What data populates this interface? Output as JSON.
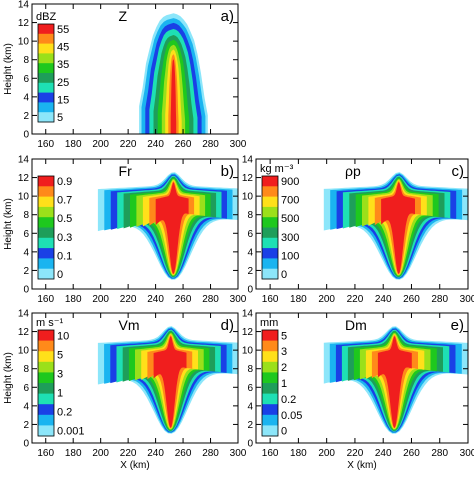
{
  "chart_data": [
    {
      "type": "heatmap",
      "panel_letter": "a)",
      "variable": "Z",
      "units": "dBZ",
      "ylabel": "Height (km)",
      "xlabel": "",
      "xlim": [
        150,
        300
      ],
      "ylim": [
        0,
        14
      ],
      "xticks": [
        160,
        180,
        200,
        220,
        240,
        260,
        280,
        300
      ],
      "yticks": [
        0,
        2,
        4,
        6,
        8,
        10,
        12,
        14
      ],
      "colorbar_ticks": [
        "55",
        "45",
        "35",
        "25",
        "15",
        "5"
      ],
      "colorbar_colors": [
        "#f01e1e",
        "#ff8a1a",
        "#ffe01a",
        "#9be01a",
        "#1ec81e",
        "#1e9e5a",
        "#1ee0b4",
        "#1a40e6",
        "#1ab4f0",
        "#8ce6fa"
      ],
      "field": {
        "xrange": [
          228,
          278
        ],
        "top_heights_km": [
          3.0,
          5.0,
          7.6,
          9.1,
          10.6,
          11.5,
          12.2,
          12.6,
          12.8,
          12.9,
          13.0,
          12.9,
          12.7,
          12.3,
          11.8,
          11.0,
          10.1,
          8.6,
          6.6,
          4.0,
          2.0
        ],
        "core_x_km": 253,
        "max_value": 55
      }
    },
    {
      "type": "heatmap",
      "panel_letter": "b)",
      "variable": "Fr",
      "units": "",
      "ylabel": "Height (km)",
      "xlabel": "",
      "xlim": [
        150,
        300
      ],
      "ylim": [
        0,
        14
      ],
      "xticks": [
        160,
        180,
        200,
        220,
        240,
        260,
        280,
        300
      ],
      "yticks": [
        0,
        2,
        4,
        6,
        8,
        10,
        12,
        14
      ],
      "colorbar_ticks": [
        "0.9",
        "0.7",
        "0.5",
        "0.3",
        "0.1",
        "0"
      ],
      "colorbar_colors": [
        "#f01e1e",
        "#ff8a1a",
        "#ffe01a",
        "#9be01a",
        "#1ec81e",
        "#1e9e5a",
        "#1ee0b4",
        "#1a40e6",
        "#1ab4f0",
        "#8ce6fa"
      ],
      "field": {
        "xrange": [
          198,
          300
        ],
        "core_x_km": 253,
        "max_value": 0.9
      }
    },
    {
      "type": "heatmap",
      "panel_letter": "c)",
      "variable": "ρp",
      "units": "kg m⁻³",
      "ylabel": "",
      "xlabel": "",
      "xlim": [
        150,
        300
      ],
      "ylim": [
        0,
        14
      ],
      "xticks": [
        160,
        180,
        200,
        220,
        240,
        260,
        280,
        300
      ],
      "yticks": [
        0,
        2,
        4,
        6,
        8,
        10,
        12,
        14
      ],
      "colorbar_ticks": [
        "900",
        "700",
        "500",
        "300",
        "100",
        "0"
      ],
      "colorbar_colors": [
        "#f01e1e",
        "#ff8a1a",
        "#ffe01a",
        "#9be01a",
        "#1ec81e",
        "#1e9e5a",
        "#1ee0b4",
        "#1a40e6",
        "#1ab4f0",
        "#8ce6fa"
      ],
      "field": {
        "xrange": [
          198,
          300
        ],
        "core_x_km": 251,
        "max_value": 900
      }
    },
    {
      "type": "heatmap",
      "panel_letter": "d)",
      "variable": "Vm",
      "units": "m s⁻¹",
      "ylabel": "Height (km)",
      "xlabel": "X (km)",
      "xlim": [
        150,
        300
      ],
      "ylim": [
        0,
        14
      ],
      "xticks": [
        160,
        180,
        200,
        220,
        240,
        260,
        280,
        300
      ],
      "yticks": [
        0,
        2,
        4,
        6,
        8,
        10,
        12,
        14
      ],
      "colorbar_ticks": [
        "10",
        "5",
        "3",
        "1",
        "0.2",
        "0.001"
      ],
      "colorbar_colors": [
        "#f01e1e",
        "#ff8a1a",
        "#ffe01a",
        "#9be01a",
        "#1ec81e",
        "#1e9e5a",
        "#1ee0b4",
        "#1a40e6",
        "#1ab4f0",
        "#8ce6fa"
      ],
      "field": {
        "xrange": [
          198,
          300
        ],
        "core_x_km": 251,
        "max_value": 10
      }
    },
    {
      "type": "heatmap",
      "panel_letter": "e)",
      "variable": "Dm",
      "units": "mm",
      "ylabel": "",
      "xlabel": "X (km)",
      "xlim": [
        150,
        300
      ],
      "ylim": [
        0,
        14
      ],
      "xticks": [
        160,
        180,
        200,
        220,
        240,
        260,
        280,
        300
      ],
      "yticks": [
        0,
        2,
        4,
        6,
        8,
        10,
        12,
        14
      ],
      "colorbar_ticks": [
        "5",
        "3",
        "2",
        "1",
        "0.2",
        "0.05",
        "0"
      ],
      "colorbar_colors": [
        "#f01e1e",
        "#ff8a1a",
        "#ffe01a",
        "#9be01a",
        "#1ec81e",
        "#1e9e5a",
        "#1ee0b4",
        "#1a40e6",
        "#1ab4f0",
        "#8ce6fa"
      ],
      "field": {
        "xrange": [
          198,
          300
        ],
        "core_x_km": 248,
        "max_value": 5
      }
    }
  ]
}
